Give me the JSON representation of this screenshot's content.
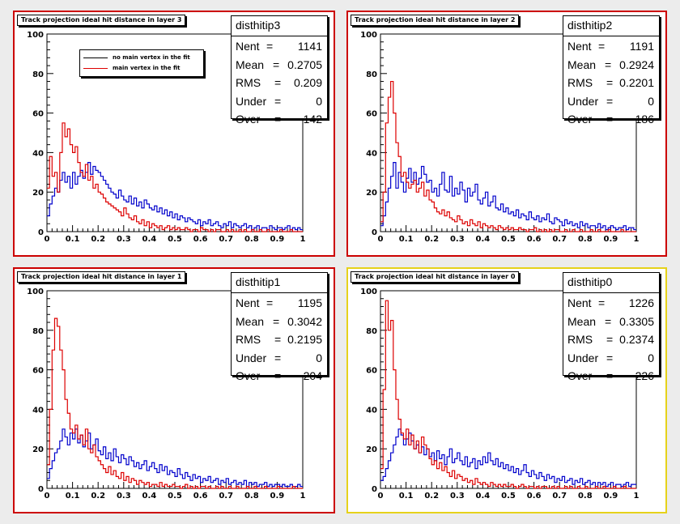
{
  "colors": {
    "background": "#ececec",
    "pad_border": "#cc0000",
    "selected_border": "#e6d21a",
    "series_no_vertex": "#0000cc",
    "series_vertex": "#dd0000"
  },
  "legend": {
    "entries": [
      {
        "label": "no main vertex in the fit",
        "color": "#000000"
      },
      {
        "label": "main vertex in the fit",
        "color": "#dd0000"
      }
    ]
  },
  "stats_labels": {
    "nent": "Nent",
    "mean": "Mean",
    "rms": "RMS",
    "under": "Under",
    "over": "Over",
    "eq": "="
  },
  "chart_data": [
    {
      "type": "histogram",
      "title": "Track projection  ideal hit distance in layer 3",
      "stats": {
        "name": "disthitip3",
        "nent": "1141",
        "mean": "0.2705",
        "rms": "0.209",
        "under": "0",
        "over": "142"
      },
      "xlim": [
        0,
        1
      ],
      "ylim": [
        0,
        100
      ],
      "xticks": [
        "0",
        "0.1",
        "0.2",
        "0.3",
        "0.4",
        "0.5",
        "0.6",
        "0.7",
        "0.8",
        "0.9",
        "1"
      ],
      "yticks": [
        "0",
        "20",
        "40",
        "60",
        "80",
        "100"
      ],
      "grid": false,
      "bins": 100,
      "bin_width": 0.01,
      "series": [
        {
          "name": "no main vertex in the fit",
          "color": "#0000cc",
          "values": [
            8,
            14,
            18,
            22,
            20,
            26,
            30,
            25,
            28,
            22,
            30,
            24,
            28,
            31,
            27,
            30,
            35,
            29,
            33,
            31,
            30,
            28,
            26,
            24,
            22,
            20,
            19,
            17,
            21,
            18,
            16,
            15,
            18,
            14,
            17,
            13,
            15,
            12,
            16,
            14,
            12,
            11,
            13,
            10,
            12,
            9,
            11,
            8,
            10,
            7,
            9,
            6,
            8,
            7,
            5,
            7,
            6,
            5,
            4,
            6,
            3,
            5,
            4,
            6,
            3,
            4,
            5,
            3,
            2,
            4,
            3,
            5,
            2,
            4,
            3,
            2,
            3,
            4,
            2,
            3,
            1,
            2,
            3,
            1,
            2,
            2,
            1,
            3,
            2,
            1,
            2,
            2,
            1,
            2,
            3,
            1,
            2,
            1,
            2,
            1
          ]
        },
        {
          "name": "main vertex in the fit",
          "color": "#dd0000",
          "values": [
            22,
            38,
            28,
            30,
            20,
            40,
            55,
            48,
            52,
            44,
            40,
            43,
            35,
            30,
            28,
            34,
            26,
            28,
            22,
            24,
            20,
            19,
            17,
            15,
            14,
            13,
            12,
            11,
            10,
            8,
            12,
            9,
            7,
            6,
            8,
            5,
            4,
            6,
            3,
            5,
            2,
            4,
            3,
            2,
            3,
            1,
            2,
            3,
            1,
            2,
            1,
            2,
            1,
            1,
            2,
            1,
            0,
            1,
            1,
            0,
            2,
            1,
            1,
            0,
            1,
            0,
            1,
            1,
            0,
            0,
            1,
            0,
            1,
            0,
            0,
            1,
            0,
            1,
            0,
            0,
            1,
            0,
            0,
            1,
            0,
            0,
            1,
            0,
            0,
            0,
            0,
            1,
            0,
            0,
            0,
            1,
            0,
            0,
            0,
            0
          ]
        }
      ]
    },
    {
      "type": "histogram",
      "title": "Track projection  ideal hit distance in layer 2",
      "stats": {
        "name": "disthitip2",
        "nent": "1191",
        "mean": "0.2924",
        "rms": "0.2201",
        "under": "0",
        "over": "186"
      },
      "xlim": [
        0,
        1
      ],
      "ylim": [
        0,
        100
      ],
      "xticks": [
        "0",
        "0.1",
        "0.2",
        "0.3",
        "0.4",
        "0.5",
        "0.6",
        "0.7",
        "0.8",
        "0.9",
        "1"
      ],
      "yticks": [
        "0",
        "20",
        "40",
        "60",
        "80",
        "100"
      ],
      "grid": false,
      "bins": 100,
      "bin_width": 0.01,
      "series": [
        {
          "name": "no main vertex in the fit",
          "color": "#0000cc",
          "values": [
            3,
            8,
            15,
            22,
            28,
            35,
            22,
            30,
            25,
            20,
            27,
            32,
            25,
            30,
            24,
            27,
            33,
            29,
            25,
            26,
            20,
            22,
            18,
            24,
            30,
            21,
            20,
            28,
            18,
            22,
            19,
            25,
            21,
            15,
            22,
            18,
            20,
            24,
            16,
            14,
            17,
            20,
            13,
            15,
            18,
            12,
            11,
            14,
            10,
            12,
            9,
            10,
            8,
            11,
            7,
            9,
            8,
            6,
            10,
            7,
            6,
            8,
            5,
            7,
            6,
            9,
            5,
            4,
            7,
            6,
            5,
            3,
            6,
            4,
            5,
            3,
            4,
            2,
            5,
            3,
            4,
            2,
            3,
            3,
            2,
            4,
            2,
            3,
            1,
            2,
            3,
            2,
            1,
            2,
            2,
            3,
            1,
            2,
            2,
            1
          ]
        },
        {
          "name": "main vertex in the fit",
          "color": "#dd0000",
          "values": [
            5,
            20,
            55,
            68,
            76,
            60,
            45,
            38,
            28,
            30,
            25,
            22,
            24,
            26,
            20,
            22,
            25,
            18,
            21,
            16,
            15,
            12,
            10,
            9,
            11,
            8,
            10,
            7,
            6,
            5,
            8,
            6,
            4,
            5,
            3,
            6,
            4,
            3,
            5,
            2,
            4,
            3,
            2,
            3,
            2,
            1,
            3,
            2,
            1,
            2,
            1,
            2,
            1,
            1,
            2,
            1,
            1,
            0,
            1,
            1,
            2,
            0,
            1,
            0,
            1,
            0,
            1,
            0,
            1,
            1,
            0,
            0,
            1,
            0,
            0,
            1,
            0,
            0,
            1,
            0,
            0,
            0,
            1,
            0,
            0,
            1,
            0,
            0,
            0,
            1,
            0,
            0,
            0,
            0,
            1,
            0,
            0,
            0,
            0,
            0
          ]
        }
      ]
    },
    {
      "type": "histogram",
      "title": "Track projection  ideal hit distance in layer 1",
      "stats": {
        "name": "disthitip1",
        "nent": "1195",
        "mean": "0.3042",
        "rms": "0.2195",
        "under": "0",
        "over": "204"
      },
      "xlim": [
        0,
        1
      ],
      "ylim": [
        0,
        100
      ],
      "xticks": [
        "0",
        "0.1",
        "0.2",
        "0.3",
        "0.4",
        "0.5",
        "0.6",
        "0.7",
        "0.8",
        "0.9",
        "1"
      ],
      "yticks": [
        "0",
        "20",
        "40",
        "60",
        "80",
        "100"
      ],
      "grid": false,
      "bins": 100,
      "bin_width": 0.01,
      "series": [
        {
          "name": "no main vertex in the fit",
          "color": "#0000cc",
          "values": [
            5,
            10,
            14,
            18,
            20,
            24,
            30,
            26,
            22,
            28,
            25,
            30,
            23,
            27,
            21,
            24,
            28,
            20,
            22,
            25,
            19,
            17,
            21,
            15,
            18,
            14,
            20,
            16,
            13,
            17,
            15,
            12,
            16,
            14,
            11,
            13,
            10,
            12,
            14,
            9,
            11,
            13,
            10,
            8,
            12,
            9,
            11,
            7,
            9,
            8,
            6,
            10,
            7,
            5,
            8,
            6,
            4,
            7,
            5,
            6,
            3,
            5,
            4,
            6,
            3,
            4,
            5,
            2,
            4,
            3,
            5,
            2,
            3,
            4,
            2,
            3,
            2,
            4,
            1,
            3,
            2,
            3,
            1,
            2,
            2,
            3,
            1,
            2,
            1,
            2,
            2,
            1,
            2,
            1,
            1,
            2,
            1,
            1,
            2,
            1
          ]
        },
        {
          "name": "main vertex in the fit",
          "color": "#dd0000",
          "values": [
            12,
            40,
            70,
            86,
            82,
            70,
            60,
            45,
            38,
            30,
            28,
            32,
            25,
            27,
            22,
            30,
            20,
            18,
            22,
            16,
            14,
            12,
            10,
            8,
            11,
            7,
            9,
            6,
            5,
            8,
            4,
            6,
            3,
            5,
            4,
            2,
            4,
            3,
            2,
            3,
            1,
            2,
            2,
            1,
            3,
            1,
            2,
            1,
            1,
            2,
            1,
            1,
            0,
            1,
            2,
            0,
            1,
            0,
            1,
            0,
            1,
            1,
            0,
            1,
            0,
            0,
            1,
            0,
            1,
            0,
            0,
            1,
            0,
            0,
            1,
            0,
            0,
            0,
            1,
            0,
            0,
            1,
            0,
            0,
            0,
            1,
            0,
            0,
            0,
            0,
            1,
            0,
            0,
            0,
            0,
            0,
            1,
            0,
            0,
            0
          ]
        }
      ]
    },
    {
      "type": "histogram",
      "title": "Track projection  ideal hit distance in layer 0",
      "stats": {
        "name": "disthitip0",
        "nent": "1226",
        "mean": "0.3305",
        "rms": "0.2374",
        "under": "0",
        "over": "226"
      },
      "xlim": [
        0,
        1
      ],
      "ylim": [
        0,
        100
      ],
      "xticks": [
        "0",
        "0.1",
        "0.2",
        "0.3",
        "0.4",
        "0.5",
        "0.6",
        "0.7",
        "0.8",
        "0.9",
        "1"
      ],
      "yticks": [
        "0",
        "20",
        "40",
        "60",
        "80",
        "100"
      ],
      "grid": false,
      "bins": 100,
      "bin_width": 0.01,
      "series": [
        {
          "name": "no main vertex in the fit",
          "color": "#0000cc",
          "values": [
            4,
            6,
            10,
            14,
            18,
            22,
            26,
            30,
            27,
            22,
            25,
            28,
            24,
            20,
            22,
            18,
            21,
            17,
            20,
            16,
            18,
            14,
            19,
            15,
            17,
            12,
            16,
            20,
            13,
            15,
            18,
            14,
            12,
            16,
            11,
            13,
            15,
            10,
            14,
            12,
            16,
            13,
            18,
            14,
            12,
            15,
            11,
            13,
            10,
            12,
            9,
            11,
            8,
            10,
            7,
            9,
            12,
            8,
            6,
            9,
            7,
            5,
            8,
            6,
            4,
            7,
            5,
            6,
            3,
            5,
            4,
            6,
            3,
            4,
            5,
            2,
            4,
            3,
            5,
            2,
            3,
            4,
            2,
            3,
            1,
            3,
            2,
            3,
            1,
            2,
            3,
            1,
            2,
            2,
            1,
            2,
            3,
            1,
            2,
            2
          ]
        },
        {
          "name": "main vertex in the fit",
          "color": "#dd0000",
          "values": [
            10,
            50,
            95,
            80,
            85,
            60,
            45,
            35,
            28,
            25,
            30,
            22,
            27,
            20,
            24,
            18,
            26,
            22,
            20,
            15,
            12,
            14,
            10,
            13,
            9,
            11,
            8,
            6,
            9,
            5,
            7,
            6,
            4,
            5,
            3,
            4,
            2,
            5,
            3,
            2,
            3,
            2,
            1,
            3,
            2,
            1,
            2,
            1,
            2,
            1,
            1,
            2,
            1,
            0,
            1,
            2,
            1,
            0,
            1,
            1,
            0,
            1,
            0,
            1,
            1,
            0,
            0,
            1,
            0,
            1,
            0,
            0,
            1,
            0,
            1,
            0,
            0,
            1,
            0,
            0,
            1,
            0,
            0,
            0,
            1,
            0,
            0,
            1,
            0,
            0,
            0,
            1,
            0,
            0,
            0,
            1,
            0,
            0,
            0,
            0
          ]
        }
      ]
    }
  ]
}
